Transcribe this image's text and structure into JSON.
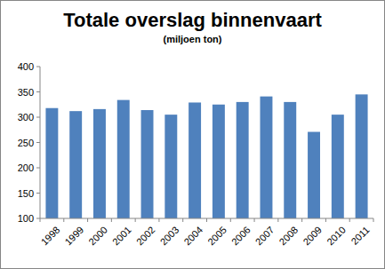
{
  "chart_data": {
    "type": "bar",
    "title": "Totale overslag binnenvaart",
    "subtitle": "(miljoen ton)",
    "categories": [
      "1998",
      "1999",
      "2000",
      "2001",
      "2002",
      "2003",
      "2004",
      "2005",
      "2006",
      "2007",
      "2008",
      "2009",
      "2010",
      "2011"
    ],
    "values": [
      318,
      312,
      316,
      334,
      314,
      305,
      329,
      325,
      330,
      341,
      330,
      271,
      305,
      345
    ],
    "color": "#4f81bd",
    "ylim": [
      100,
      400
    ],
    "yticks": [
      100,
      150,
      200,
      250,
      300,
      350,
      400
    ],
    "grid": false
  }
}
